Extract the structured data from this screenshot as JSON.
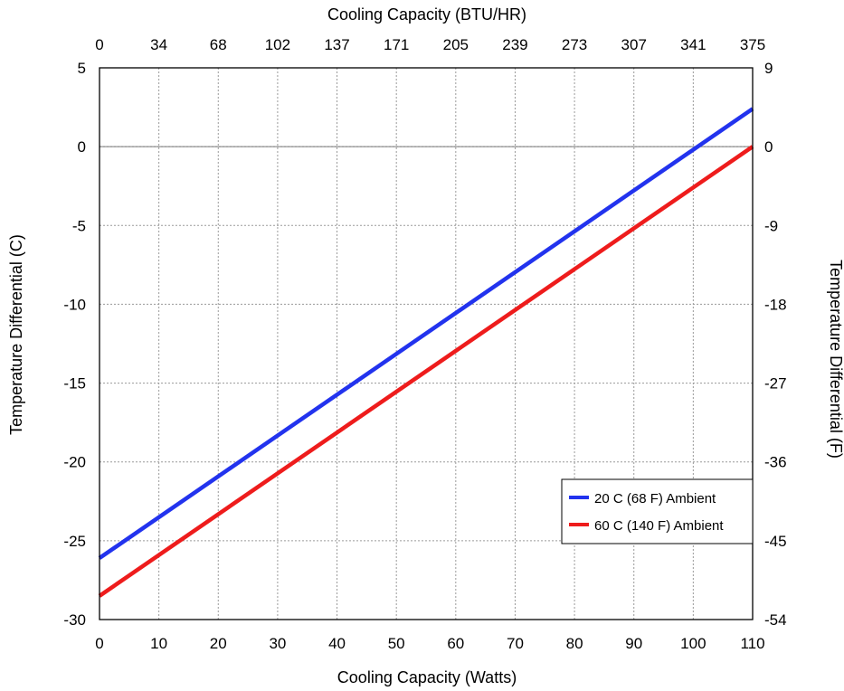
{
  "chart_data": {
    "type": "line",
    "title": "",
    "xlabel": "Cooling Capacity (Watts)",
    "x2label": "Cooling Capacity (BTU/HR)",
    "ylabel": "Temperature Differential (C)",
    "y2label": "Temperature Differential (F)",
    "xlim": [
      0,
      110
    ],
    "ylim": [
      -30,
      5
    ],
    "x_ticks": [
      "0",
      "10",
      "20",
      "30",
      "40",
      "50",
      "60",
      "70",
      "80",
      "90",
      "100",
      "110"
    ],
    "x2_ticks": [
      "0",
      "34",
      "68",
      "102",
      "137",
      "171",
      "205",
      "239",
      "273",
      "307",
      "341",
      "375"
    ],
    "y_ticks": [
      "5",
      "0",
      "-5",
      "-10",
      "-15",
      "-20",
      "-25",
      "-30"
    ],
    "y2_ticks": [
      "9",
      "0",
      "-9",
      "-18",
      "-27",
      "-36",
      "-45",
      "-54"
    ],
    "grid": true,
    "legend_position": "lower-right",
    "series": [
      {
        "name": "20 C (68 F) Ambient",
        "color": "#2233ee",
        "x": [
          0,
          110
        ],
        "y": [
          -26.1,
          2.4
        ]
      },
      {
        "name": "60 C (140 F) Ambient",
        "color": "#ee1c1c",
        "x": [
          0,
          110
        ],
        "y": [
          -28.5,
          0
        ]
      }
    ]
  }
}
